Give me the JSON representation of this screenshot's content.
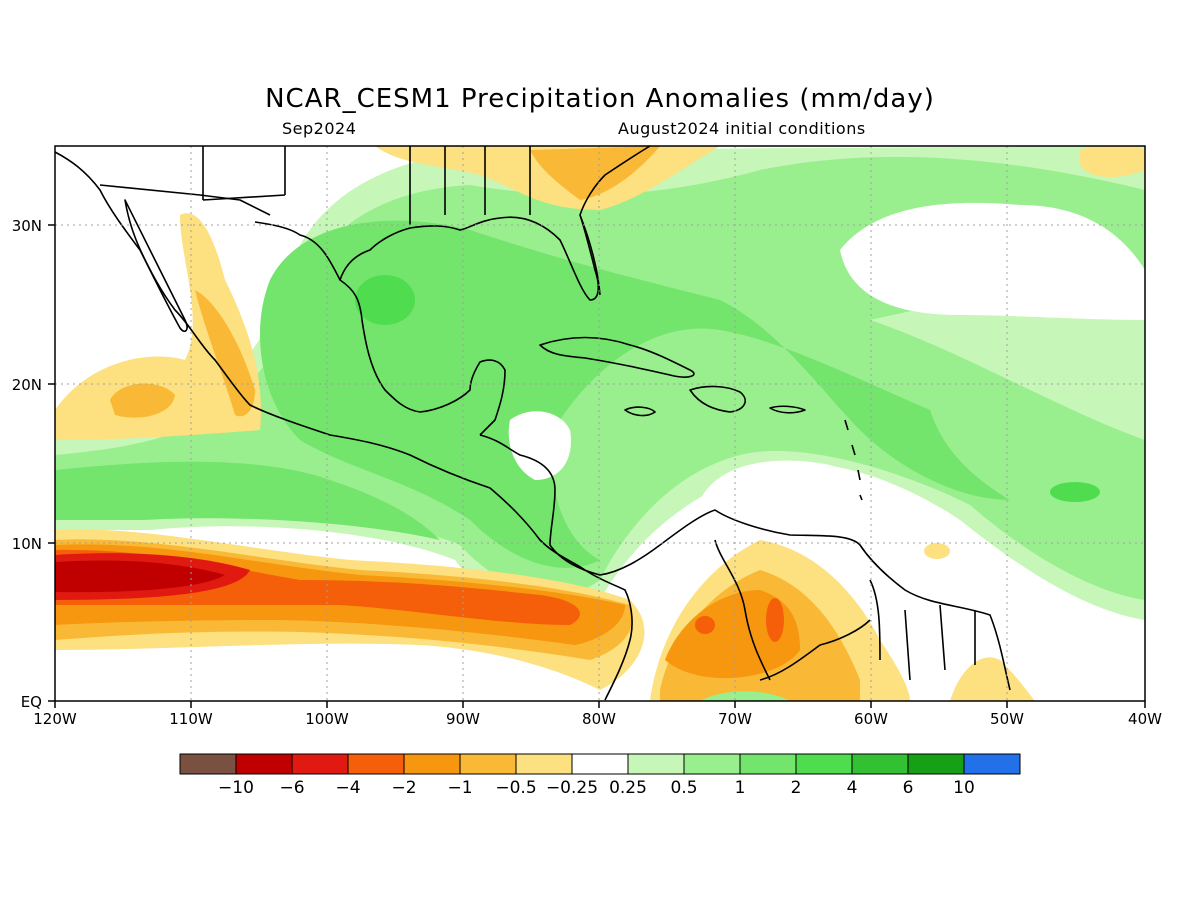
{
  "title": "NCAR_CESM1 Precipitation Anomalies (mm/day)",
  "subtitle_left": "Sep2024",
  "subtitle_right": "August2024 initial conditions",
  "x_ticks": [
    "120W",
    "110W",
    "100W",
    "90W",
    "80W",
    "70W",
    "60W",
    "50W",
    "40W"
  ],
  "y_ticks": [
    "EQ",
    "10N",
    "20N",
    "30N"
  ],
  "colorbar": {
    "colors": [
      "#7a5040",
      "#c00000",
      "#e01a10",
      "#f55f0a",
      "#f7960f",
      "#f9b936",
      "#fde07f",
      "#ffffff",
      "#c7f7b8",
      "#99ef8e",
      "#73e46c",
      "#4fdc4f",
      "#33c033",
      "#16a016",
      "#2271e8"
    ],
    "labels": [
      "−10",
      "−6",
      "−4",
      "−2",
      "−1",
      "−0.5",
      "−0.25",
      "0.25",
      "0.5",
      "1",
      "2",
      "4",
      "6",
      "10"
    ]
  },
  "map_colors": {
    "wet_light": "#c7f7b8",
    "wet_mid": "#99ef8e",
    "wet_strong": "#73e46c",
    "wet_max": "#4fdc4f",
    "dry_light": "#fde07f",
    "dry_mid": "#f9b936",
    "dry_strong": "#f7960f",
    "dry_max": "#f55f0a",
    "dry_extreme": "#e01a10",
    "dry_record": "#c00000",
    "coast": "#000000"
  }
}
